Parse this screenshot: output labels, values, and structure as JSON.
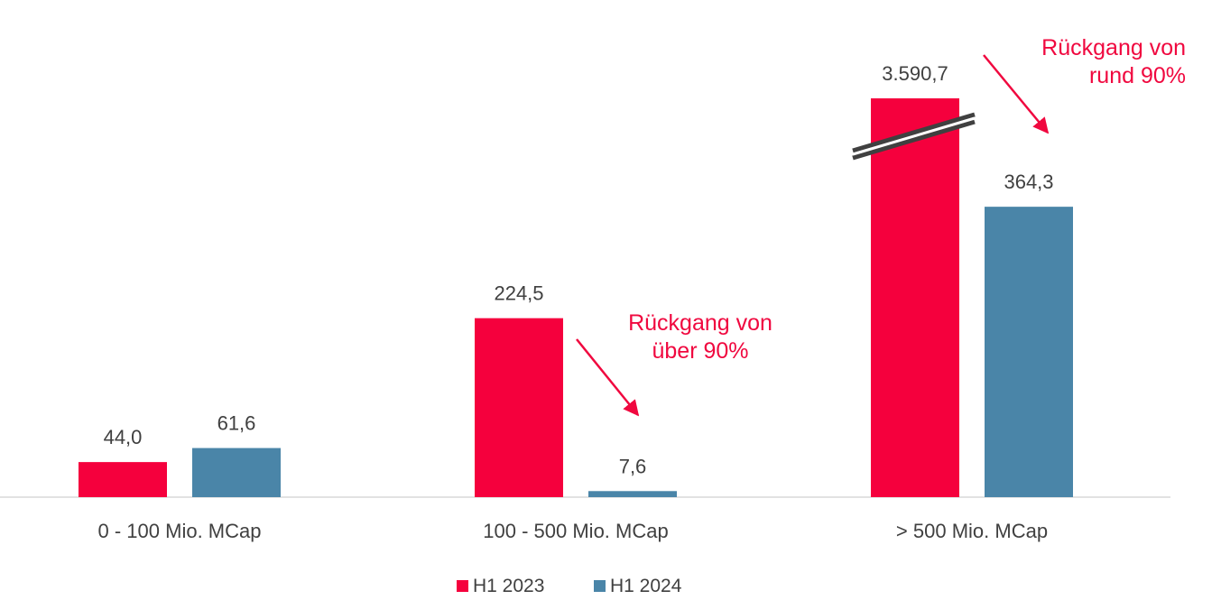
{
  "chart_data": {
    "type": "bar",
    "categories": [
      "0 - 100 Mio. MCap",
      "100 - 500 Mio. MCap",
      "> 500 Mio. MCap"
    ],
    "series": [
      {
        "name": "H1 2023",
        "values": [
          44.0,
          224.5,
          3590.7
        ],
        "labels": [
          "44,0",
          "224,5",
          "3.590,7"
        ],
        "color": "#f5003d"
      },
      {
        "name": "H1 2024",
        "values": [
          61.6,
          7.6,
          364.3
        ],
        "labels": [
          "61,6",
          "7,6",
          "364,3"
        ],
        "color": "#4a85a8"
      }
    ],
    "axis_break": {
      "category": "> 500 Mio. MCap",
      "series": "H1 2023"
    },
    "annotations": [
      {
        "lines": [
          "Rückgang von",
          "über 90%"
        ],
        "category": "100 - 500 Mio. MCap"
      },
      {
        "lines": [
          "Rückgang von",
          "rund 90%"
        ],
        "category": "> 500 Mio. MCap"
      }
    ],
    "legend_position": "bottom",
    "grid": false,
    "annotation_color": "#f0083f"
  }
}
